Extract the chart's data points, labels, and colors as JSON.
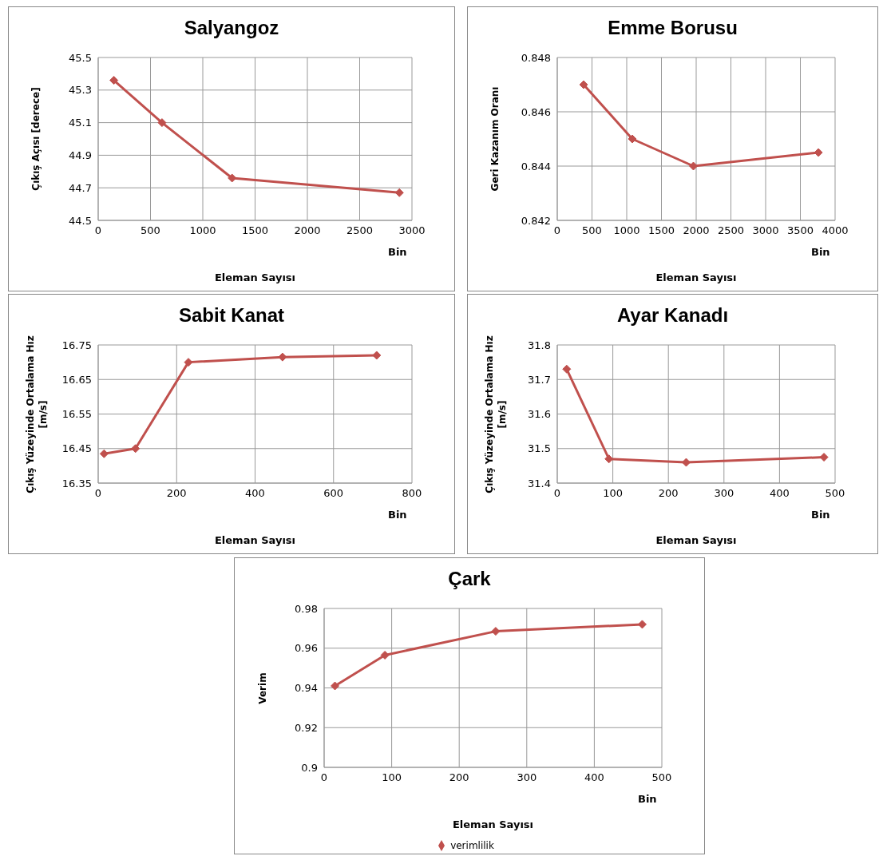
{
  "chart_data": [
    {
      "type": "line",
      "title": "Salyangoz",
      "xlabel": "Eleman Sayısı",
      "ylabel": "Çıkış Açısı [derece]",
      "annotations": [
        "Bin"
      ],
      "series": [
        {
          "color": "#c0504d",
          "x": [
            150,
            610,
            1280,
            2880
          ],
          "values": [
            45.36,
            45.1,
            44.76,
            44.67
          ]
        }
      ],
      "xlim": [
        0,
        3000
      ],
      "xticks": [
        0,
        500,
        1000,
        1500,
        2000,
        2500,
        3000
      ],
      "ylim": [
        44.5,
        45.5
      ],
      "yticks": [
        {
          "value": 44.5,
          "label": "44.5"
        },
        {
          "value": 44.7,
          "label": "44.7"
        },
        {
          "value": 44.9,
          "label": "44.9"
        },
        {
          "value": 45.1,
          "label": "45.1"
        },
        {
          "value": 45.3,
          "label": "45.3"
        },
        {
          "value": 45.5,
          "label": "45.5"
        }
      ],
      "grid": true,
      "legend": false,
      "marker": "diamond",
      "line_style": "solid"
    },
    {
      "type": "line",
      "title": "Emme Borusu",
      "xlabel": "Eleman Sayısı",
      "ylabel": "Geri Kazanım Oranı",
      "annotations": [
        "Bin"
      ],
      "series": [
        {
          "color": "#c0504d",
          "x": [
            380,
            1080,
            1960,
            3760
          ],
          "values": [
            0.847,
            0.845,
            0.844,
            0.8445
          ]
        }
      ],
      "xlim": [
        0,
        4000
      ],
      "xticks": [
        0,
        500,
        1000,
        1500,
        2000,
        2500,
        3000,
        3500,
        4000
      ],
      "ylim": [
        0.842,
        0.848
      ],
      "yticks": [
        {
          "value": 0.842,
          "label": "0.842"
        },
        {
          "value": 0.844,
          "label": "0.844"
        },
        {
          "value": 0.846,
          "label": "0.846"
        },
        {
          "value": 0.848,
          "label": "0.848"
        }
      ],
      "grid": true,
      "legend": false,
      "marker": "diamond",
      "line_style": "solid"
    },
    {
      "type": "line",
      "title": "Sabit Kanat",
      "xlabel": "Eleman Sayısı",
      "ylabel": "Çıkış Yüzeyinde Ortalama Hız [m/s]",
      "annotations": [
        "Bin"
      ],
      "series": [
        {
          "color": "#c0504d",
          "x": [
            15,
            95,
            230,
            470,
            710
          ],
          "values": [
            16.435,
            16.45,
            16.7,
            16.715,
            16.72
          ]
        }
      ],
      "xlim": [
        0,
        800
      ],
      "xticks": [
        0,
        200,
        400,
        600,
        800
      ],
      "ylim": [
        16.35,
        16.75
      ],
      "yticks": [
        {
          "value": 16.35,
          "label": "16.35"
        },
        {
          "value": 16.45,
          "label": "16.45"
        },
        {
          "value": 16.55,
          "label": "16.55"
        },
        {
          "value": 16.65,
          "label": "16.65"
        },
        {
          "value": 16.75,
          "label": "16.75"
        }
      ],
      "grid": true,
      "legend": false,
      "marker": "diamond",
      "line_style": "solid"
    },
    {
      "type": "line",
      "title": "Ayar Kanadı",
      "xlabel": "Eleman Sayısı",
      "ylabel": "Çıkış Yüzeyinde Ortalama Hız [m/s]",
      "annotations": [
        "Bin"
      ],
      "series": [
        {
          "color": "#c0504d",
          "x": [
            17,
            93,
            232,
            480
          ],
          "values": [
            31.73,
            31.47,
            31.46,
            31.475
          ]
        }
      ],
      "xlim": [
        0,
        500
      ],
      "xticks": [
        0,
        100,
        200,
        300,
        400,
        500
      ],
      "ylim": [
        31.4,
        31.8
      ],
      "yticks": [
        {
          "value": 31.4,
          "label": "31.4"
        },
        {
          "value": 31.5,
          "label": "31.5"
        },
        {
          "value": 31.6,
          "label": "31.6"
        },
        {
          "value": 31.7,
          "label": "31.7"
        },
        {
          "value": 31.8,
          "label": "31.8"
        }
      ],
      "grid": true,
      "legend": false,
      "marker": "diamond",
      "line_style": "solid"
    },
    {
      "type": "line",
      "title": "Çark",
      "xlabel": "Eleman Sayısı",
      "ylabel": "Verim",
      "annotations": [
        "Bin"
      ],
      "series": [
        {
          "name": "verimlilik",
          "color": "#c0504d",
          "x": [
            16,
            90,
            254,
            471
          ],
          "values": [
            0.941,
            0.9565,
            0.9685,
            0.972
          ]
        }
      ],
      "xlim": [
        0,
        500
      ],
      "xticks": [
        0,
        100,
        200,
        300,
        400,
        500
      ],
      "ylim": [
        0.9,
        0.98
      ],
      "yticks": [
        {
          "value": 0.9,
          "label": "0.9"
        },
        {
          "value": 0.92,
          "label": "0.92"
        },
        {
          "value": 0.94,
          "label": "0.94"
        },
        {
          "value": 0.96,
          "label": "0.96"
        },
        {
          "value": 0.98,
          "label": "0.98"
        }
      ],
      "grid": true,
      "legend": "bottom",
      "marker": "diamond",
      "line_style": "solid"
    }
  ]
}
